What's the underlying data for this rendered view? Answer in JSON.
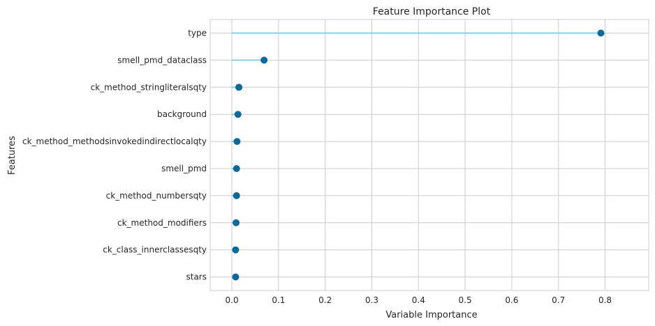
{
  "chart_data": {
    "type": "lollipop",
    "title": "Feature Importance Plot",
    "xlabel": "Variable Importance",
    "ylabel": "Features",
    "xlim": [
      -0.0465,
      0.8935
    ],
    "xticks": [
      0.0,
      0.1,
      0.2,
      0.3,
      0.4,
      0.5,
      0.6,
      0.7,
      0.8
    ],
    "xtick_labels": [
      "0.0",
      "0.1",
      "0.2",
      "0.3",
      "0.4",
      "0.5",
      "0.6",
      "0.7",
      "0.8"
    ],
    "grid": true,
    "features": [
      {
        "name": "type",
        "value": 0.791
      },
      {
        "name": "smell_pmd_dataclass",
        "value": 0.069
      },
      {
        "name": "ck_method_stringliteralsqty",
        "value": 0.015
      },
      {
        "name": "background",
        "value": 0.013
      },
      {
        "name": "ck_method_methodsinvokedindirectlocalqty",
        "value": 0.011
      },
      {
        "name": "smell_pmd",
        "value": 0.01
      },
      {
        "name": "ck_method_numbersqty",
        "value": 0.01
      },
      {
        "name": "ck_method_modifiers",
        "value": 0.009
      },
      {
        "name": "ck_class_innerclassesqty",
        "value": 0.008
      },
      {
        "name": "stars",
        "value": 0.008
      }
    ],
    "colors": {
      "stem": "#87cee3",
      "marker": "#0a6b9a",
      "grid": "#cccccc",
      "text": "#262626"
    }
  }
}
